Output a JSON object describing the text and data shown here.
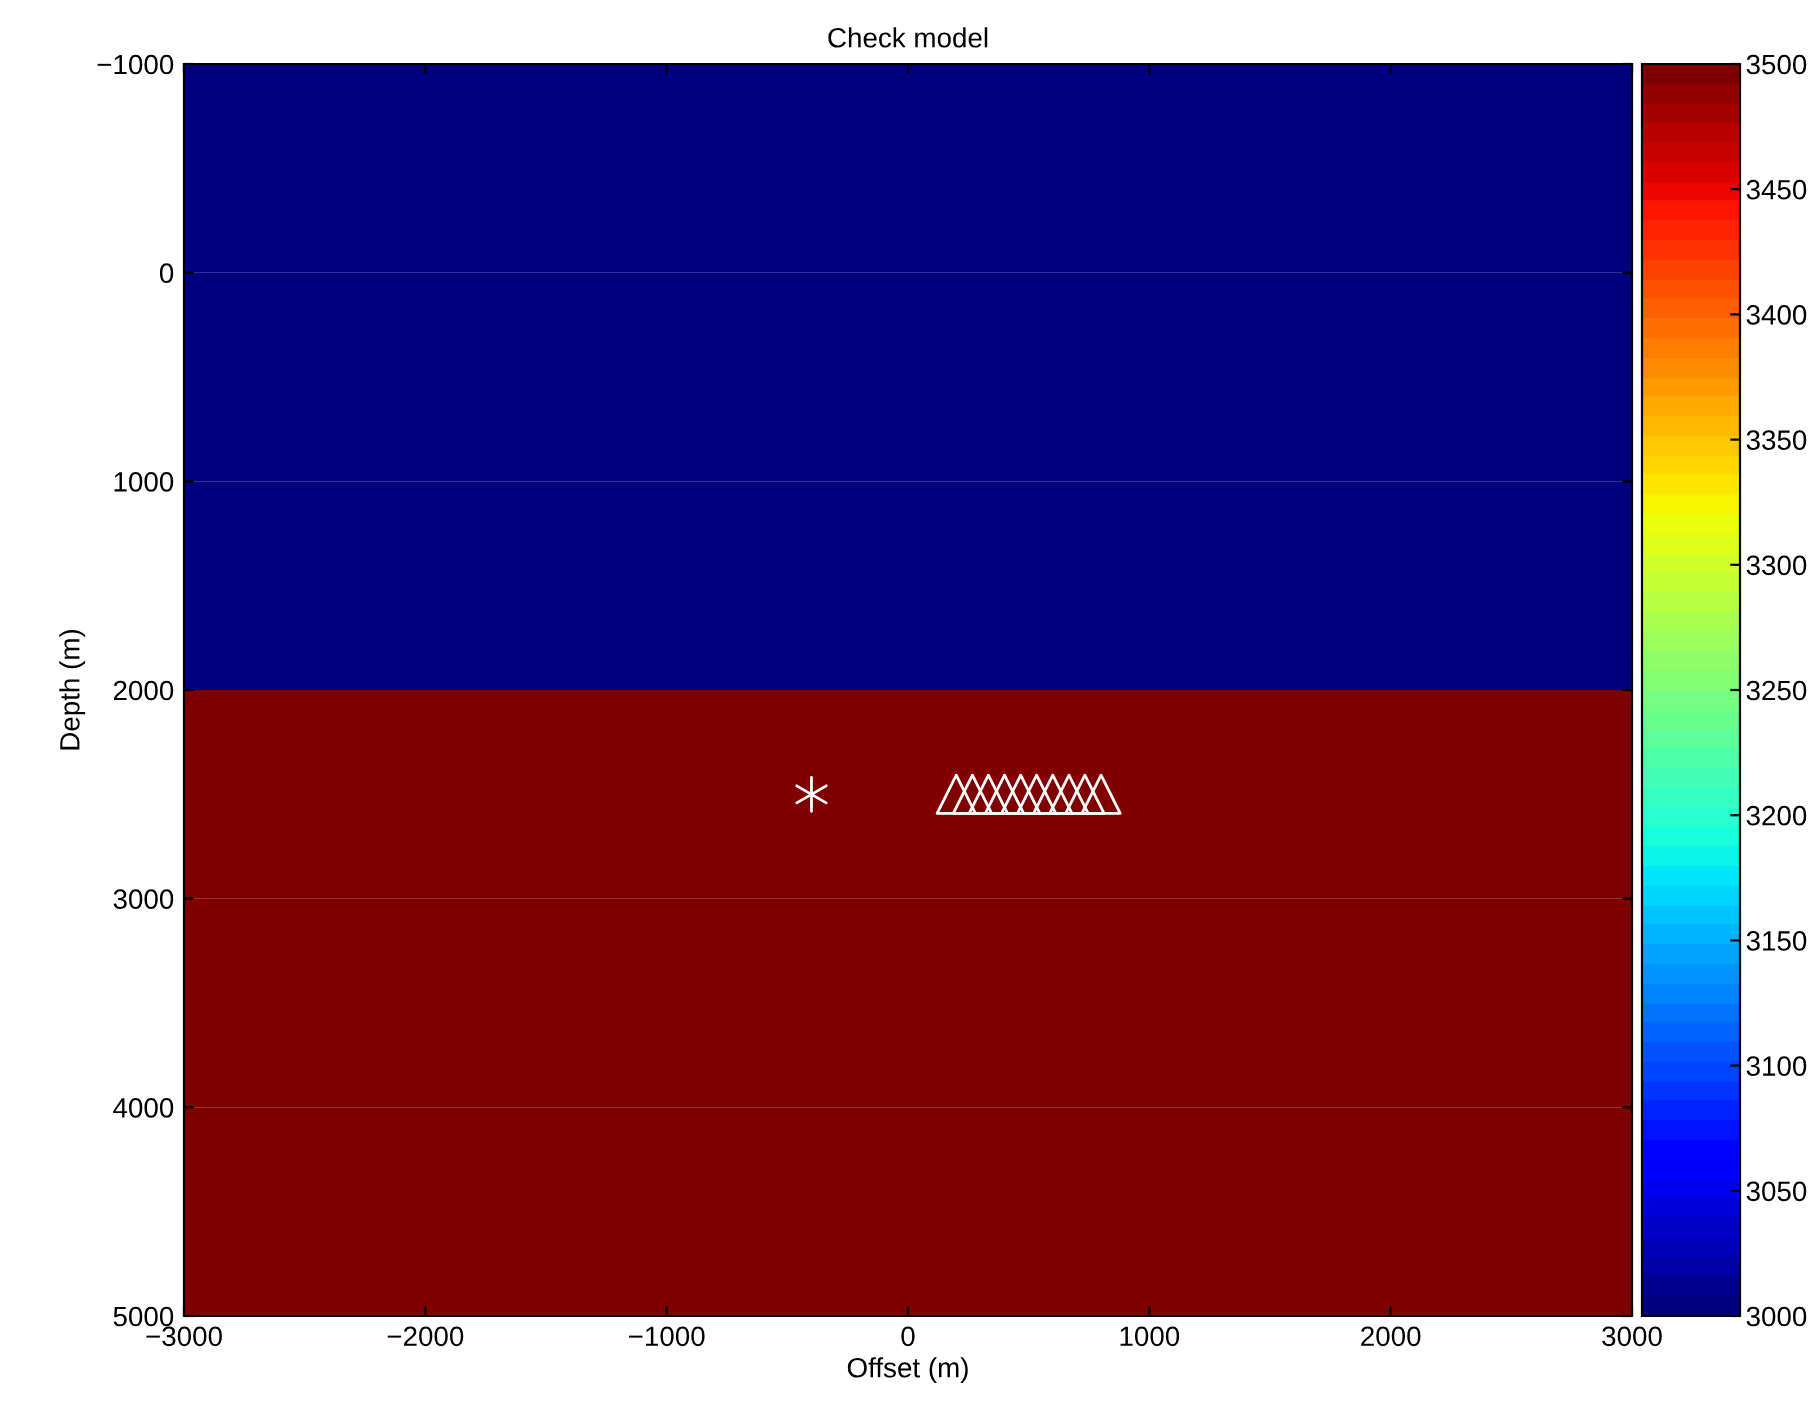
{
  "chart_data": {
    "type": "heatmap",
    "title": "Check model",
    "xlabel": "Offset (m)",
    "ylabel": "Depth (m)",
    "cells": [
      [
        3000
      ],
      [
        3000
      ],
      [
        3000
      ],
      [
        3500
      ],
      [
        3500
      ],
      [
        3500
      ]
    ],
    "xlim": [
      -3000,
      3000
    ],
    "ylim": [
      5000,
      -1000
    ],
    "xticks": [
      {
        "value": -3000,
        "label": "−3000"
      },
      {
        "value": -2000,
        "label": "−2000"
      },
      {
        "value": -1000,
        "label": "−1000"
      },
      0,
      1000,
      2000,
      3000
    ],
    "yticks": [
      {
        "value": -1000,
        "label": "−1000"
      },
      0,
      1000,
      2000,
      3000,
      4000,
      5000
    ],
    "clim": [
      3000,
      3500
    ],
    "cticks": [
      3000,
      3050,
      3100,
      3150,
      3200,
      3250,
      3300,
      3350,
      3400,
      3450,
      3500
    ],
    "grid": false,
    "legend": false,
    "series": [
      {
        "type": "scatter",
        "marker": "cross",
        "color": "#ffffff",
        "x": [
          -400
        ],
        "values": [
          2500
        ]
      },
      {
        "type": "scatter",
        "marker": "triangle",
        "color": "#ffffff",
        "x": [
          200,
          267,
          333,
          400,
          467,
          533,
          600,
          667,
          733,
          800
        ],
        "values": [
          2500,
          2500,
          2500,
          2500,
          2500,
          2500,
          2500,
          2500,
          2500,
          2500
        ]
      }
    ]
  }
}
